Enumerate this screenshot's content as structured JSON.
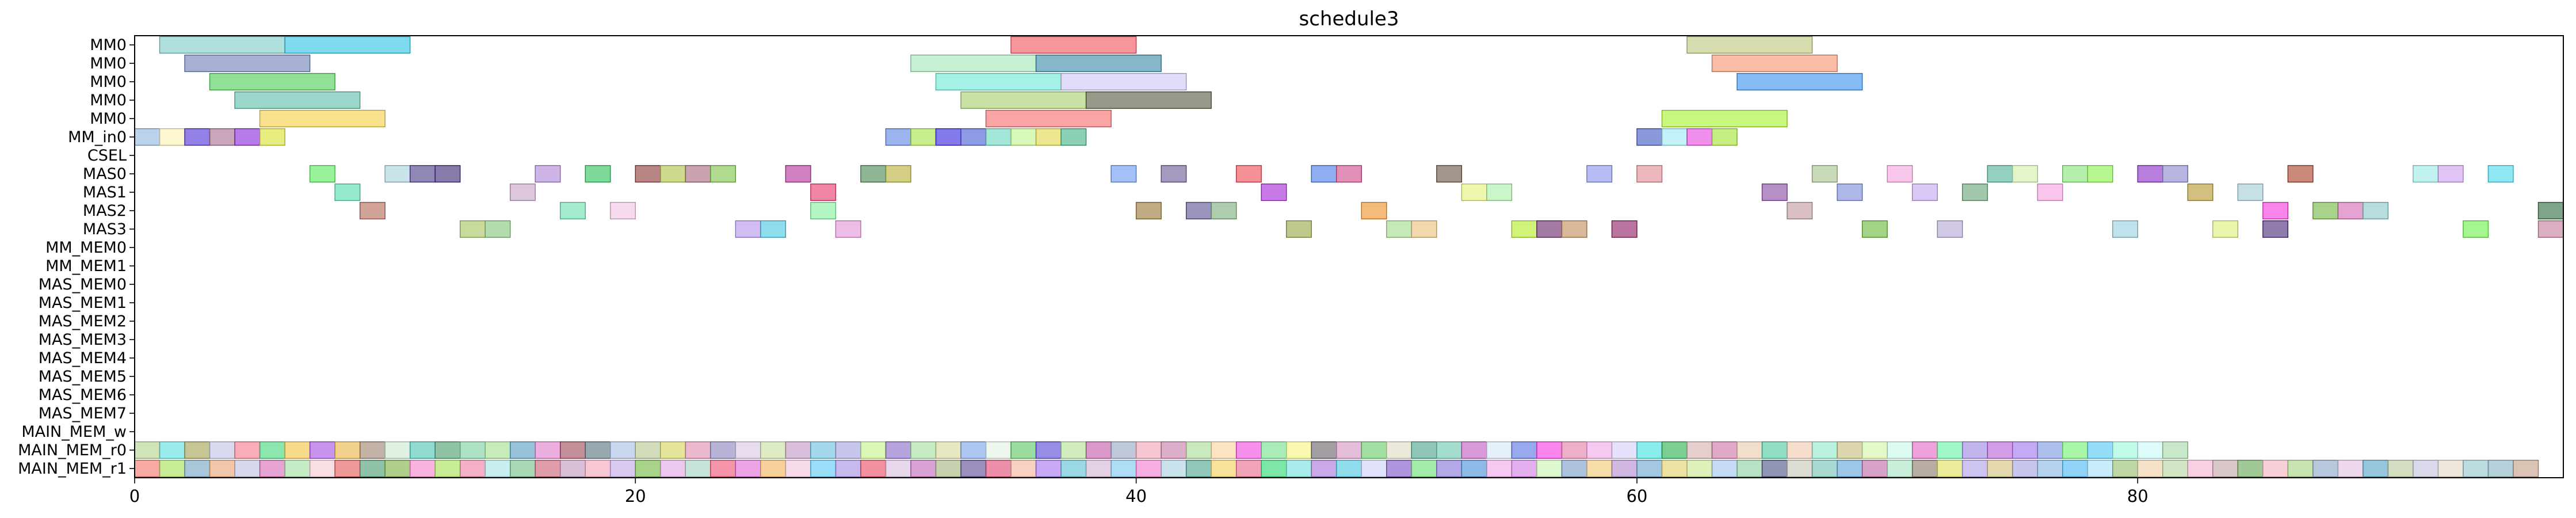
{
  "chart_data": {
    "type": "gantt",
    "title": "schedule3",
    "xlabel": "",
    "ylabel": "",
    "xlim": [
      0,
      97
    ],
    "xticks": [
      0,
      20,
      40,
      60,
      80
    ],
    "rows": [
      "MM0",
      "MM0",
      "MM0",
      "MM0",
      "MM0",
      "MM_in0",
      "CSEL",
      "MAS0",
      "MAS1",
      "MAS2",
      "MAS3",
      "MM_MEM0",
      "MM_MEM1",
      "MAS_MEM0",
      "MAS_MEM1",
      "MAS_MEM2",
      "MAS_MEM3",
      "MAS_MEM4",
      "MAS_MEM5",
      "MAS_MEM6",
      "MAS_MEM7",
      "MAIN_MEM_w",
      "MAIN_MEM_r0",
      "MAIN_MEM_r1"
    ],
    "tasks": [
      {
        "row": 0,
        "start": 1,
        "end": 6,
        "color": "#7fcdc8"
      },
      {
        "row": 0,
        "start": 6,
        "end": 11,
        "color": "#2ec4e0"
      },
      {
        "row": 0,
        "start": 35,
        "end": 40,
        "color": "#ee5560"
      },
      {
        "row": 0,
        "start": 62,
        "end": 67,
        "color": "#bdc77c"
      },
      {
        "row": 1,
        "start": 2,
        "end": 7,
        "color": "#7081b8"
      },
      {
        "row": 1,
        "start": 31,
        "end": 36,
        "color": "#a5e6b7"
      },
      {
        "row": 1,
        "start": 36,
        "end": 41,
        "color": "#3b8aa6"
      },
      {
        "row": 1,
        "start": 63,
        "end": 68,
        "color": "#f4946c"
      },
      {
        "row": 2,
        "start": 3,
        "end": 8,
        "color": "#4fcc58"
      },
      {
        "row": 2,
        "start": 32,
        "end": 37,
        "color": "#6ee8d8"
      },
      {
        "row": 2,
        "start": 37,
        "end": 42,
        "color": "#cfc6f2"
      },
      {
        "row": 2,
        "start": 64,
        "end": 69,
        "color": "#3b91f0"
      },
      {
        "row": 3,
        "start": 4,
        "end": 9,
        "color": "#5cbfa9"
      },
      {
        "row": 3,
        "start": 33,
        "end": 38,
        "color": "#a9cf6e"
      },
      {
        "row": 3,
        "start": 38,
        "end": 43,
        "color": "#595c40"
      },
      {
        "row": 4,
        "start": 5,
        "end": 10,
        "color": "#f6cf48"
      },
      {
        "row": 4,
        "start": 34,
        "end": 39,
        "color": "#f56e6e"
      },
      {
        "row": 4,
        "start": 61,
        "end": 66,
        "color": "#a7f130"
      },
      {
        "row": 5,
        "start": 0,
        "end": 1,
        "color": "#8fb7de"
      },
      {
        "row": 5,
        "start": 1,
        "end": 2,
        "color": "#fbf2b2"
      },
      {
        "row": 5,
        "start": 2,
        "end": 3,
        "color": "#5233d8"
      },
      {
        "row": 5,
        "start": 3,
        "end": 4,
        "color": "#a96f8f"
      },
      {
        "row": 5,
        "start": 4,
        "end": 5,
        "color": "#8b28d6"
      },
      {
        "row": 5,
        "start": 5,
        "end": 6,
        "color": "#d8e234"
      },
      {
        "row": 5,
        "start": 30,
        "end": 31,
        "color": "#5f86e4"
      },
      {
        "row": 5,
        "start": 31,
        "end": 32,
        "color": "#a4e444"
      },
      {
        "row": 5,
        "start": 32,
        "end": 33,
        "color": "#3a28e0"
      },
      {
        "row": 5,
        "start": 33,
        "end": 34,
        "color": "#4b5cd4"
      },
      {
        "row": 5,
        "start": 34,
        "end": 35,
        "color": "#6cd6c0"
      },
      {
        "row": 5,
        "start": 35,
        "end": 36,
        "color": "#bff48c"
      },
      {
        "row": 5,
        "start": 36,
        "end": 37,
        "color": "#e0d84c"
      },
      {
        "row": 5,
        "start": 37,
        "end": 38,
        "color": "#44b488"
      },
      {
        "row": 5,
        "start": 60,
        "end": 61,
        "color": "#4458c4"
      },
      {
        "row": 5,
        "start": 61,
        "end": 62,
        "color": "#9fe8f4"
      },
      {
        "row": 5,
        "start": 62,
        "end": 63,
        "color": "#e84ce0"
      },
      {
        "row": 5,
        "start": 63,
        "end": 64,
        "color": "#a4e434"
      },
      {
        "row": 7,
        "start": 7,
        "end": 8,
        "color": "#5be85b"
      },
      {
        "row": 7,
        "start": 10,
        "end": 11,
        "color": "#a7d2dc"
      },
      {
        "row": 7,
        "start": 11,
        "end": 12,
        "color": "#4e3e8a"
      },
      {
        "row": 7,
        "start": 12,
        "end": 13,
        "color": "#3b2a78"
      },
      {
        "row": 7,
        "start": 16,
        "end": 17,
        "color": "#b086d8"
      },
      {
        "row": 7,
        "start": 18,
        "end": 19,
        "color": "#2dc45c"
      },
      {
        "row": 7,
        "start": 20,
        "end": 21,
        "color": "#8e3b3b"
      },
      {
        "row": 7,
        "start": 21,
        "end": 22,
        "color": "#aec348"
      },
      {
        "row": 7,
        "start": 22,
        "end": 23,
        "color": "#a86a7a"
      },
      {
        "row": 7,
        "start": 23,
        "end": 24,
        "color": "#7ec44a"
      },
      {
        "row": 7,
        "start": 26,
        "end": 27,
        "color": "#b5329d"
      },
      {
        "row": 7,
        "start": 29,
        "end": 30,
        "color": "#4a8a55"
      },
      {
        "row": 7,
        "start": 30,
        "end": 31,
        "color": "#bcb23c"
      },
      {
        "row": 7,
        "start": 39,
        "end": 40,
        "color": "#6b9bf0"
      },
      {
        "row": 7,
        "start": 41,
        "end": 42,
        "color": "#6a5c96"
      },
      {
        "row": 7,
        "start": 44,
        "end": 45,
        "color": "#ee4c56"
      },
      {
        "row": 7,
        "start": 47,
        "end": 48,
        "color": "#4a7ae8"
      },
      {
        "row": 7,
        "start": 48,
        "end": 49,
        "color": "#d04c8c"
      },
      {
        "row": 7,
        "start": 52,
        "end": 53,
        "color": "#6e5544"
      },
      {
        "row": 7,
        "start": 58,
        "end": 59,
        "color": "#8a96f0"
      },
      {
        "row": 7,
        "start": 60,
        "end": 61,
        "color": "#e08a94"
      },
      {
        "row": 7,
        "start": 67,
        "end": 68,
        "color": "#a6c38c"
      },
      {
        "row": 7,
        "start": 70,
        "end": 71,
        "color": "#f5a5de"
      },
      {
        "row": 7,
        "start": 74,
        "end": 75,
        "color": "#52b39a"
      },
      {
        "row": 7,
        "start": 75,
        "end": 76,
        "color": "#d4f0a8"
      },
      {
        "row": 7,
        "start": 77,
        "end": 78,
        "color": "#89e47a"
      },
      {
        "row": 7,
        "start": 78,
        "end": 79,
        "color": "#8af24a"
      },
      {
        "row": 7,
        "start": 80,
        "end": 81,
        "color": "#8b2ec8"
      },
      {
        "row": 7,
        "start": 81,
        "end": 82,
        "color": "#8a88d0"
      },
      {
        "row": 7,
        "start": 86,
        "end": 87,
        "color": "#a8402a"
      },
      {
        "row": 7,
        "start": 91,
        "end": 92,
        "color": "#9aeae6"
      },
      {
        "row": 7,
        "start": 92,
        "end": 93,
        "color": "#cfa0f0"
      },
      {
        "row": 7,
        "start": 94,
        "end": 95,
        "color": "#4ad8f0"
      },
      {
        "row": 8,
        "start": 8,
        "end": 9,
        "color": "#54dcb0"
      },
      {
        "row": 8,
        "start": 15,
        "end": 16,
        "color": "#c8a4c6"
      },
      {
        "row": 8,
        "start": 27,
        "end": 28,
        "color": "#e83c6c"
      },
      {
        "row": 8,
        "start": 45,
        "end": 46,
        "color": "#a62ad8"
      },
      {
        "row": 8,
        "start": 53,
        "end": 54,
        "color": "#e4f07c"
      },
      {
        "row": 8,
        "start": 54,
        "end": 55,
        "color": "#aaf0a8"
      },
      {
        "row": 8,
        "start": 65,
        "end": 66,
        "color": "#8b4aa6"
      },
      {
        "row": 8,
        "start": 68,
        "end": 69,
        "color": "#7c8cd8"
      },
      {
        "row": 8,
        "start": 71,
        "end": 72,
        "color": "#c4a8f0"
      },
      {
        "row": 8,
        "start": 73,
        "end": 74,
        "color": "#6aa478"
      },
      {
        "row": 8,
        "start": 76,
        "end": 77,
        "color": "#f5a2e2"
      },
      {
        "row": 8,
        "start": 82,
        "end": 83,
        "color": "#b89a34"
      },
      {
        "row": 8,
        "start": 84,
        "end": 85,
        "color": "#a4ccd8"
      },
      {
        "row": 9,
        "start": 9,
        "end": 10,
        "color": "#b86a5a"
      },
      {
        "row": 9,
        "start": 17,
        "end": 18,
        "color": "#6ae0b0"
      },
      {
        "row": 9,
        "start": 19,
        "end": 20,
        "color": "#f0c4e4"
      },
      {
        "row": 9,
        "start": 27,
        "end": 28,
        "color": "#88f0a0"
      },
      {
        "row": 9,
        "start": 40,
        "end": 41,
        "color": "#9a7a3c"
      },
      {
        "row": 9,
        "start": 42,
        "end": 43,
        "color": "#5a5494"
      },
      {
        "row": 9,
        "start": 43,
        "end": 44,
        "color": "#7cae7c"
      },
      {
        "row": 9,
        "start": 49,
        "end": 50,
        "color": "#ee9228"
      },
      {
        "row": 9,
        "start": 66,
        "end": 67,
        "color": "#c09aa0"
      },
      {
        "row": 9,
        "start": 85,
        "end": 86,
        "color": "#f43ad8"
      },
      {
        "row": 9,
        "start": 87,
        "end": 88,
        "color": "#74b844"
      },
      {
        "row": 9,
        "start": 88,
        "end": 89,
        "color": "#d46ab4"
      },
      {
        "row": 9,
        "start": 89,
        "end": 90,
        "color": "#8cc8cc"
      },
      {
        "row": 9,
        "start": 96,
        "end": 97,
        "color": "#2e6e3e"
      },
      {
        "row": 10,
        "start": 13,
        "end": 14,
        "color": "#a6c460"
      },
      {
        "row": 10,
        "start": 14,
        "end": 15,
        "color": "#86c87c"
      },
      {
        "row": 10,
        "start": 24,
        "end": 25,
        "color": "#b494ee"
      },
      {
        "row": 10,
        "start": 25,
        "end": 26,
        "color": "#48c8e4"
      },
      {
        "row": 10,
        "start": 28,
        "end": 29,
        "color": "#e494d8"
      },
      {
        "row": 10,
        "start": 46,
        "end": 47,
        "color": "#9aa844"
      },
      {
        "row": 10,
        "start": 50,
        "end": 51,
        "color": "#a4dc8a"
      },
      {
        "row": 10,
        "start": 51,
        "end": 52,
        "color": "#ecc07c"
      },
      {
        "row": 10,
        "start": 55,
        "end": 56,
        "color": "#b4ec28"
      },
      {
        "row": 10,
        "start": 56,
        "end": 57,
        "color": "#6a2a6a"
      },
      {
        "row": 10,
        "start": 57,
        "end": 58,
        "color": "#c48e5c"
      },
      {
        "row": 10,
        "start": 59,
        "end": 60,
        "color": "#8e1e64"
      },
      {
        "row": 10,
        "start": 69,
        "end": 70,
        "color": "#6ab83a"
      },
      {
        "row": 10,
        "start": 72,
        "end": 73,
        "color": "#b4a8d4"
      },
      {
        "row": 10,
        "start": 79,
        "end": 80,
        "color": "#98d0e0"
      },
      {
        "row": 10,
        "start": 83,
        "end": 84,
        "color": "#daf07a"
      },
      {
        "row": 10,
        "start": 85,
        "end": 86,
        "color": "#4a2a7a"
      },
      {
        "row": 10,
        "start": 93,
        "end": 94,
        "color": "#6cf04a"
      },
      {
        "row": 10,
        "start": 96,
        "end": 97,
        "color": "#c87aa0"
      }
    ],
    "memory_rows": {
      "MAIN_MEM_r0": [
        "#b4d48c",
        "#5ee0e0",
        "#a4a054",
        "#c4c4e4",
        "#f47a8c",
        "#44d87c",
        "#f4c444",
        "#a654e4",
        "#e8b444",
        "#9e8270",
        "#cce8d0",
        "#4cc4b4",
        "#4c9e6c",
        "#7cd0a0",
        "#a4e090",
        "#5a9ec4",
        "#e07ccc",
        "#9e4c5c",
        "#5a7480",
        "#a8c0e4",
        "#b4c890",
        "#d4d45c",
        "#e08cb0",
        "#8c86c0",
        "#d8c8e4",
        "#c8e0a0",
        "#c498c8",
        "#6cc0e0",
        "#a4a4e0",
        "#c4f488",
        "#8a6ac8",
        "#a4e0a0",
        "#d8d8a0",
        "#7ca4e8",
        "#e0f0e0",
        "#5cc864",
        "#5448d4",
        "#b4e094",
        "#c45aa8",
        "#98a8c4",
        "#f0a4b8",
        "#c87ca8",
        "#a8dc98",
        "#fcd4a0",
        "#f04ce0",
        "#74e08c",
        "#f4f480",
        "#6a6268",
        "#d494c4",
        "#6acc6a",
        "#e0dcc4",
        "#48a48c",
        "#6cc8b0",
        "#c45cc4",
        "#d4e8f8",
        "#5874e4",
        "#f43ce0",
        "#e080a8",
        "#f0a8e8",
        "#d8d0f8",
        "#44e0e0",
        "#2cb050",
        "#d4b0b0",
        "#cc74a4",
        "#e8ccb0",
        "#4cc8a0",
        "#f0c8b0",
        "#8ce8c8",
        "#c8bc7c",
        "#d4f8a4",
        "#c8f8e8",
        "#e468c4",
        "#68f4a4",
        "#9c88e4",
        "#b860d8",
        "#a074f0",
        "#7c98e0",
        "#74f074",
        "#54c8f4",
        "#98f8d8",
        "#c8f8f8",
        "#a8d8a8"
      ],
      "MAIN_MEM_r1": [
        "#f4786c",
        "#a4e054",
        "#74a4c4",
        "#e8a474",
        "#c0c0e0",
        "#d86ab4",
        "#9ee0a4",
        "#f4ccd4",
        "#e45858",
        "#4c9c74",
        "#7cb040",
        "#f484cc",
        "#a4e054",
        "#ec80a4",
        "#a8e4e8",
        "#74c088",
        "#cc6078",
        "#c09ac0",
        "#f4a4b8",
        "#c4a8e8",
        "#74b844",
        "#e0a4e4",
        "#a4d4c0",
        "#ee5474",
        "#e06cd8",
        "#f4b45c",
        "#f0c8dc",
        "#5cc8f4",
        "#a48ce4",
        "#e84e64",
        "#d8c0e0",
        "#c46ac0",
        "#a4b480",
        "#5c4a94",
        "#e44a74",
        "#f4b49c",
        "#a474f0",
        "#5cc0d4",
        "#d4b4d4",
        "#80c8f0",
        "#f480d4",
        "#a8d0e0",
        "#4ca48c",
        "#f4d05c",
        "#e86c8c",
        "#2cd874",
        "#74e0e0",
        "#a874d8",
        "#4cc8e4",
        "#d0d4f8",
        "#7c54c8",
        "#6ae074",
        "#8474d8",
        "#4890d8",
        "#f0a8e8",
        "#d47ce4",
        "#c8f4b0",
        "#7c9cc8",
        "#f0c874",
        "#b48cd0",
        "#6ca4d0",
        "#e0d06c",
        "#cce890",
        "#a4c4f0",
        "#8cd0a0",
        "#4a5484",
        "#c8c8b8",
        "#74c4b4",
        "#60a4d8",
        "#c06aa8",
        "#a8e4c4",
        "#8a7a68",
        "#e0e05c",
        "#b0a0e8",
        "#d4c47c",
        "#a4a4e0",
        "#88b4e4",
        "#4cb8f0",
        "#a8e0f8",
        "#94c070",
        "#f0d0a8",
        "#b8d8a4",
        "#f4b4d4",
        "#c4a4a4",
        "#68a858",
        "#f4b4c0",
        "#a4d480",
        "#8ca8c8",
        "#e4c0e0",
        "#58a4c8",
        "#b8c89c",
        "#c4c4e0",
        "#e4d8c4",
        "#94c8d0",
        "#8ab4c4",
        "#c4a088"
      ]
    },
    "grid": false,
    "legend": "none"
  }
}
